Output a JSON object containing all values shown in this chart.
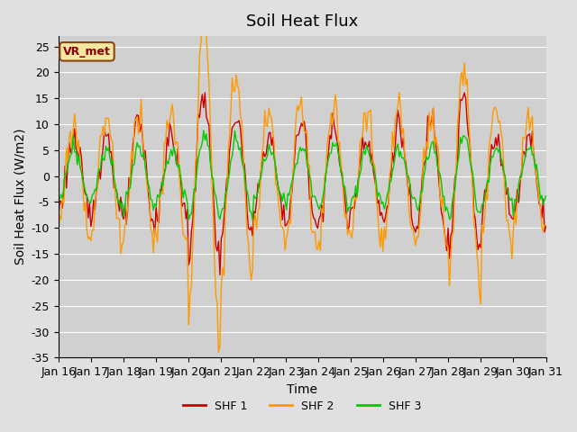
{
  "title": "Soil Heat Flux",
  "xlabel": "Time",
  "ylabel": "Soil Heat Flux (W/m2)",
  "ylim": [
    -35,
    27
  ],
  "yticks": [
    -35,
    -30,
    -25,
    -20,
    -15,
    -10,
    -5,
    0,
    5,
    10,
    15,
    20,
    25
  ],
  "xticklabels": [
    "Jan 16",
    "Jan 17",
    "Jan 18",
    "Jan 19",
    "Jan 20",
    "Jan 21",
    "Jan 22",
    "Jan 23",
    "Jan 24",
    "Jan 25",
    "Jan 26",
    "Jan 27",
    "Jan 28",
    "Jan 29",
    "Jan 30",
    "Jan 31"
  ],
  "legend_label": "VR_met",
  "series_labels": [
    "SHF 1",
    "SHF 2",
    "SHF 3"
  ],
  "colors": [
    "#cc0000",
    "#ff9900",
    "#00cc00"
  ],
  "fig_bg_color": "#e0e0e0",
  "plot_bg_color": "#d0d0d0",
  "n_points": 360,
  "title_fontsize": 13,
  "axis_fontsize": 10,
  "tick_fontsize": 9,
  "amp1_days": [
    7,
    8,
    10,
    8,
    16,
    12,
    8,
    10,
    9,
    8,
    10,
    12,
    15,
    8,
    8
  ],
  "amp2_days": [
    10,
    12,
    13,
    12,
    30,
    20,
    12,
    14,
    13,
    12,
    13,
    12,
    22,
    13,
    10
  ],
  "amp3_days": [
    5,
    5,
    6,
    5,
    8,
    7,
    5,
    5,
    6,
    5,
    5,
    6,
    8,
    6,
    5
  ],
  "phase1": 0.22,
  "phase2": 0.22,
  "phase3": 0.24,
  "noise1": 1.5,
  "noise2": 2.0,
  "noise3": 0.8,
  "random_seed": 123
}
